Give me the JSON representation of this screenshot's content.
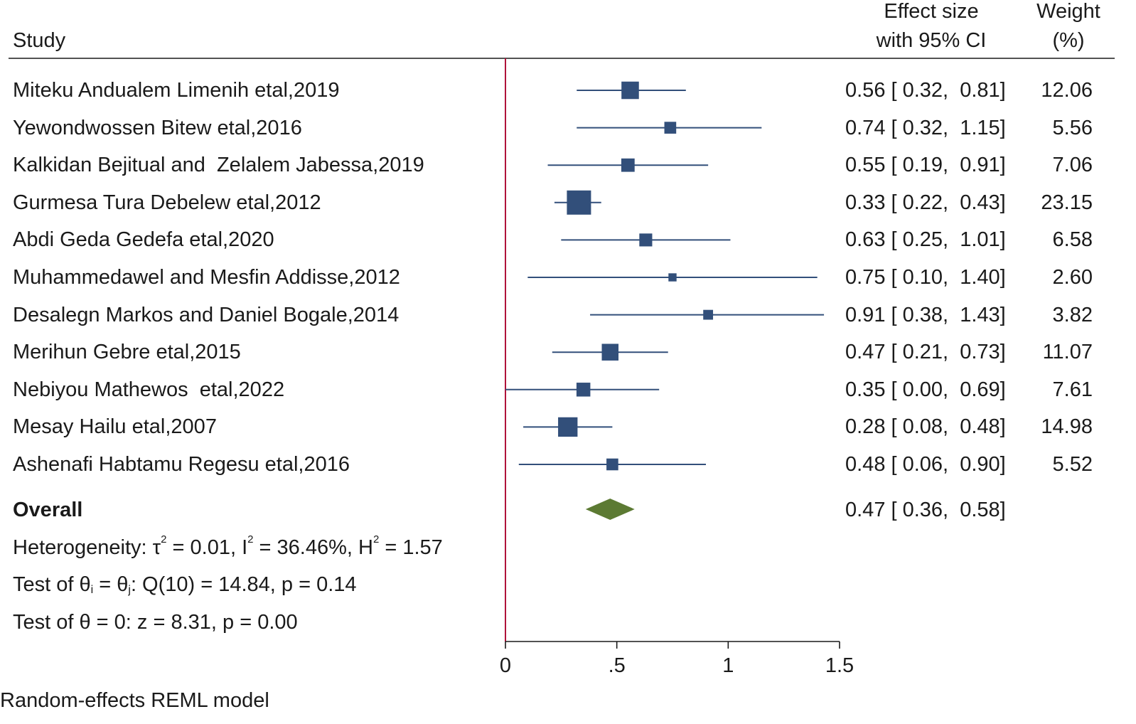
{
  "header": {
    "study": "Study",
    "effect_line1": "Effect size",
    "effect_line2": "with 95% CI",
    "weight_line1": "Weight",
    "weight_line2": "(%)"
  },
  "overall": {
    "label": "Overall",
    "ci_text": "0.47 [ 0.36,  0.58]"
  },
  "stats": {
    "heterogeneity": {
      "prefix": "Heterogeneity: τ",
      "tau_sup": "2",
      "mid1": " = 0.01, I",
      "i_sup": "2",
      "mid2": " = 36.46%, H",
      "h_sup": "2",
      "end": " = 1.57"
    },
    "test_equal": {
      "prefix": "Test of θ",
      "sub_i": "i",
      "mid": " = θ",
      "sub_j": "j",
      "end": ": Q(10) = 14.84, p = 0.14"
    },
    "test_zero": "Test of θ = 0: z = 8.31, p = 0.00"
  },
  "footer_model": "Random-effects REML model",
  "colors": {
    "marker": "#324f7a",
    "diamond": "#5c7a33",
    "null_line": "#b0123a",
    "axis": "#1a1a1a"
  },
  "chart_data": {
    "type": "forest",
    "xlim": [
      0,
      1.5
    ],
    "xticks": [
      0,
      0.5,
      1,
      1.5
    ],
    "xtick_labels": [
      "0",
      ".5",
      "1",
      "1.5"
    ],
    "null_line": 0,
    "studies": [
      {
        "name": "Miteku Andualem Limenih etal,2019",
        "es": 0.56,
        "lo": 0.32,
        "hi": 0.81,
        "ci_text": "0.56 [ 0.32,  0.81]",
        "weight": 12.06,
        "weight_text": "12.06"
      },
      {
        "name": "Yewondwossen Bitew etal,2016",
        "es": 0.74,
        "lo": 0.32,
        "hi": 1.15,
        "ci_text": "0.74 [ 0.32,  1.15]",
        "weight": 5.56,
        "weight_text": "5.56"
      },
      {
        "name": "Kalkidan Bejitual and  Zelalem Jabessa,2019",
        "es": 0.55,
        "lo": 0.19,
        "hi": 0.91,
        "ci_text": "0.55 [ 0.19,  0.91]",
        "weight": 7.06,
        "weight_text": "7.06"
      },
      {
        "name": "Gurmesa Tura Debelew etal,2012",
        "es": 0.33,
        "lo": 0.22,
        "hi": 0.43,
        "ci_text": "0.33 [ 0.22,  0.43]",
        "weight": 23.15,
        "weight_text": "23.15"
      },
      {
        "name": "Abdi Geda Gedefa etal,2020",
        "es": 0.63,
        "lo": 0.25,
        "hi": 1.01,
        "ci_text": "0.63 [ 0.25,  1.01]",
        "weight": 6.58,
        "weight_text": "6.58"
      },
      {
        "name": "Muhammedawel and Mesfin Addisse,2012",
        "es": 0.75,
        "lo": 0.1,
        "hi": 1.4,
        "ci_text": "0.75 [ 0.10,  1.40]",
        "weight": 2.6,
        "weight_text": "2.60"
      },
      {
        "name": "Desalegn Markos and Daniel Bogale,2014",
        "es": 0.91,
        "lo": 0.38,
        "hi": 1.43,
        "ci_text": "0.91 [ 0.38,  1.43]",
        "weight": 3.82,
        "weight_text": "3.82"
      },
      {
        "name": "Merihun Gebre etal,2015",
        "es": 0.47,
        "lo": 0.21,
        "hi": 0.73,
        "ci_text": "0.47 [ 0.21,  0.73]",
        "weight": 11.07,
        "weight_text": "11.07"
      },
      {
        "name": "Nebiyou Mathewos  etal,2022",
        "es": 0.35,
        "lo": 0.0,
        "hi": 0.69,
        "ci_text": "0.35 [ 0.00,  0.69]",
        "weight": 7.61,
        "weight_text": "7.61"
      },
      {
        "name": "Mesay Hailu etal,2007",
        "es": 0.28,
        "lo": 0.08,
        "hi": 0.48,
        "ci_text": "0.28 [ 0.08,  0.48]",
        "weight": 14.98,
        "weight_text": "14.98"
      },
      {
        "name": "Ashenafi Habtamu Regesu etal,2016",
        "es": 0.48,
        "lo": 0.06,
        "hi": 0.9,
        "ci_text": "0.48 [ 0.06,  0.90]",
        "weight": 5.52,
        "weight_text": "5.52"
      }
    ],
    "overall": {
      "es": 0.47,
      "lo": 0.36,
      "hi": 0.58
    }
  }
}
